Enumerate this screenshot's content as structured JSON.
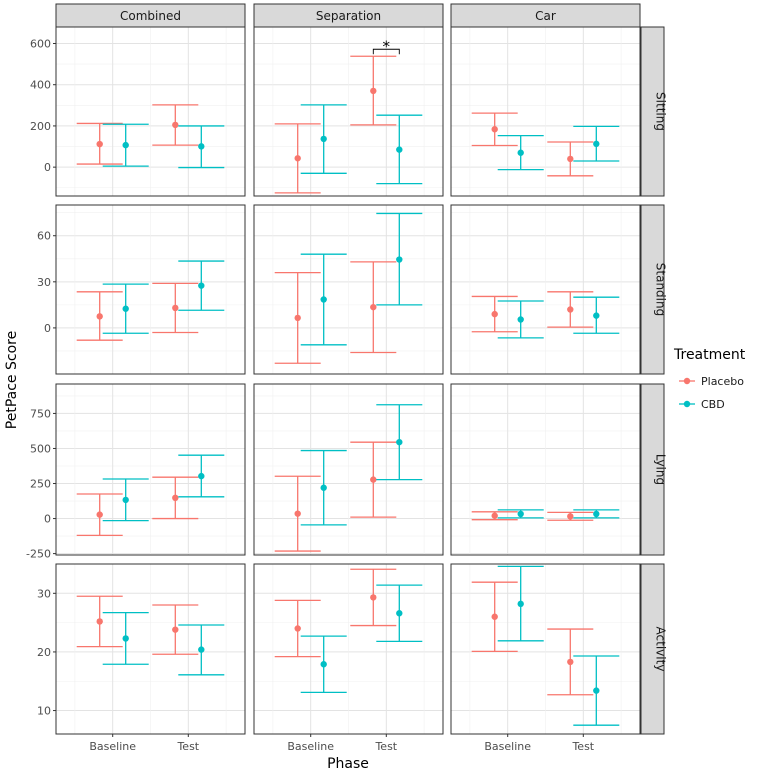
{
  "chart_data": {
    "type": "errorbar",
    "title": "",
    "xlabel": "Phase",
    "ylabel": "PetPace Score",
    "phases": [
      "Baseline",
      "Test"
    ],
    "columns": [
      "Combined",
      "Separation",
      "Car"
    ],
    "rows": [
      "Sitting",
      "Standing",
      "Lying",
      "Activity"
    ],
    "legend": {
      "title": "Treatment",
      "position": "right",
      "entries": [
        {
          "name": "Placebo",
          "color": "#F8766D"
        },
        {
          "name": "CBD",
          "color": "#00BFC4"
        }
      ]
    },
    "y_axes": [
      {
        "row": "Sitting",
        "ylim": [
          -140,
          680
        ],
        "ticks": [
          0,
          200,
          400,
          600
        ],
        "tick_labels": [
          "0",
          "200",
          "400",
          "600"
        ]
      },
      {
        "row": "Standing",
        "ylim": [
          -30,
          80
        ],
        "ticks": [
          0,
          30,
          60
        ],
        "tick_labels": [
          "0",
          "30",
          "60"
        ]
      },
      {
        "row": "Lying",
        "ylim": [
          -260,
          960
        ],
        "ticks": [
          -250,
          0,
          250,
          500,
          750
        ],
        "tick_labels": [
          "-250",
          "0",
          "250",
          "500",
          "750"
        ]
      },
      {
        "row": "Activity",
        "ylim": [
          6,
          35
        ],
        "ticks": [
          10,
          20,
          30
        ],
        "tick_labels": [
          "10",
          "20",
          "30"
        ]
      }
    ],
    "series": [
      {
        "row": "Sitting",
        "column": "Combined",
        "treatment": "Placebo",
        "phase": "Baseline",
        "mean": 112,
        "lower": 15,
        "upper": 212
      },
      {
        "row": "Sitting",
        "column": "Combined",
        "treatment": "CBD",
        "phase": "Baseline",
        "mean": 107,
        "lower": 5,
        "upper": 208
      },
      {
        "row": "Sitting",
        "column": "Combined",
        "treatment": "Placebo",
        "phase": "Test",
        "mean": 205,
        "lower": 107,
        "upper": 302
      },
      {
        "row": "Sitting",
        "column": "Combined",
        "treatment": "CBD",
        "phase": "Test",
        "mean": 101,
        "lower": -2,
        "upper": 200
      },
      {
        "row": "Sitting",
        "column": "Separation",
        "treatment": "Placebo",
        "phase": "Baseline",
        "mean": 43,
        "lower": -125,
        "upper": 210
      },
      {
        "row": "Sitting",
        "column": "Separation",
        "treatment": "CBD",
        "phase": "Baseline",
        "mean": 137,
        "lower": -30,
        "upper": 302
      },
      {
        "row": "Sitting",
        "column": "Separation",
        "treatment": "Placebo",
        "phase": "Test",
        "mean": 370,
        "lower": 205,
        "upper": 538
      },
      {
        "row": "Sitting",
        "column": "Separation",
        "treatment": "CBD",
        "phase": "Test",
        "mean": 85,
        "lower": -80,
        "upper": 252
      },
      {
        "row": "Sitting",
        "column": "Car",
        "treatment": "Placebo",
        "phase": "Baseline",
        "mean": 184,
        "lower": 105,
        "upper": 262
      },
      {
        "row": "Sitting",
        "column": "Car",
        "treatment": "CBD",
        "phase": "Baseline",
        "mean": 70,
        "lower": -12,
        "upper": 153
      },
      {
        "row": "Sitting",
        "column": "Car",
        "treatment": "Placebo",
        "phase": "Test",
        "mean": 40,
        "lower": -42,
        "upper": 122
      },
      {
        "row": "Sitting",
        "column": "Car",
        "treatment": "CBD",
        "phase": "Test",
        "mean": 113,
        "lower": 30,
        "upper": 198
      },
      {
        "row": "Standing",
        "column": "Combined",
        "treatment": "Placebo",
        "phase": "Baseline",
        "mean": 7.5,
        "lower": -8,
        "upper": 23.5
      },
      {
        "row": "Standing",
        "column": "Combined",
        "treatment": "CBD",
        "phase": "Baseline",
        "mean": 12.5,
        "lower": -3.5,
        "upper": 28.5
      },
      {
        "row": "Standing",
        "column": "Combined",
        "treatment": "Placebo",
        "phase": "Test",
        "mean": 13,
        "lower": -3,
        "upper": 29
      },
      {
        "row": "Standing",
        "column": "Combined",
        "treatment": "CBD",
        "phase": "Test",
        "mean": 27.5,
        "lower": 11.5,
        "upper": 43.5
      },
      {
        "row": "Standing",
        "column": "Separation",
        "treatment": "Placebo",
        "phase": "Baseline",
        "mean": 6.5,
        "lower": -23,
        "upper": 36
      },
      {
        "row": "Standing",
        "column": "Separation",
        "treatment": "CBD",
        "phase": "Baseline",
        "mean": 18.5,
        "lower": -11,
        "upper": 48
      },
      {
        "row": "Standing",
        "column": "Separation",
        "treatment": "Placebo",
        "phase": "Test",
        "mean": 13.5,
        "lower": -16,
        "upper": 43
      },
      {
        "row": "Standing",
        "column": "Separation",
        "treatment": "CBD",
        "phase": "Test",
        "mean": 44.5,
        "lower": 15,
        "upper": 74.5
      },
      {
        "row": "Standing",
        "column": "Car",
        "treatment": "Placebo",
        "phase": "Baseline",
        "mean": 9,
        "lower": -2.5,
        "upper": 20.5
      },
      {
        "row": "Standing",
        "column": "Car",
        "treatment": "CBD",
        "phase": "Baseline",
        "mean": 5.5,
        "lower": -6.5,
        "upper": 17.5
      },
      {
        "row": "Standing",
        "column": "Car",
        "treatment": "Placebo",
        "phase": "Test",
        "mean": 12,
        "lower": 0.5,
        "upper": 23.5
      },
      {
        "row": "Standing",
        "column": "Car",
        "treatment": "CBD",
        "phase": "Test",
        "mean": 8,
        "lower": -3.5,
        "upper": 20
      },
      {
        "row": "Lying",
        "column": "Combined",
        "treatment": "Placebo",
        "phase": "Baseline",
        "mean": 28,
        "lower": -120,
        "upper": 175
      },
      {
        "row": "Lying",
        "column": "Combined",
        "treatment": "CBD",
        "phase": "Baseline",
        "mean": 133,
        "lower": -15,
        "upper": 282
      },
      {
        "row": "Lying",
        "column": "Combined",
        "treatment": "Placebo",
        "phase": "Test",
        "mean": 148,
        "lower": 0,
        "upper": 295
      },
      {
        "row": "Lying",
        "column": "Combined",
        "treatment": "CBD",
        "phase": "Test",
        "mean": 303,
        "lower": 155,
        "upper": 452
      },
      {
        "row": "Lying",
        "column": "Separation",
        "treatment": "Placebo",
        "phase": "Baseline",
        "mean": 35,
        "lower": -232,
        "upper": 302
      },
      {
        "row": "Lying",
        "column": "Separation",
        "treatment": "CBD",
        "phase": "Baseline",
        "mean": 220,
        "lower": -45,
        "upper": 485
      },
      {
        "row": "Lying",
        "column": "Separation",
        "treatment": "Placebo",
        "phase": "Test",
        "mean": 278,
        "lower": 10,
        "upper": 545
      },
      {
        "row": "Lying",
        "column": "Separation",
        "treatment": "CBD",
        "phase": "Test",
        "mean": 545,
        "lower": 278,
        "upper": 812
      },
      {
        "row": "Lying",
        "column": "Car",
        "treatment": "Placebo",
        "phase": "Baseline",
        "mean": 20,
        "lower": -8,
        "upper": 48
      },
      {
        "row": "Lying",
        "column": "Car",
        "treatment": "CBD",
        "phase": "Baseline",
        "mean": 33,
        "lower": 5,
        "upper": 62
      },
      {
        "row": "Lying",
        "column": "Car",
        "treatment": "Placebo",
        "phase": "Test",
        "mean": 16,
        "lower": -12,
        "upper": 44
      },
      {
        "row": "Lying",
        "column": "Car",
        "treatment": "CBD",
        "phase": "Test",
        "mean": 33,
        "lower": 5,
        "upper": 62
      },
      {
        "row": "Activity",
        "column": "Combined",
        "treatment": "Placebo",
        "phase": "Baseline",
        "mean": 25.2,
        "lower": 20.9,
        "upper": 29.5
      },
      {
        "row": "Activity",
        "column": "Combined",
        "treatment": "CBD",
        "phase": "Baseline",
        "mean": 22.3,
        "lower": 17.9,
        "upper": 26.7
      },
      {
        "row": "Activity",
        "column": "Combined",
        "treatment": "Placebo",
        "phase": "Test",
        "mean": 23.8,
        "lower": 19.6,
        "upper": 28
      },
      {
        "row": "Activity",
        "column": "Combined",
        "treatment": "CBD",
        "phase": "Test",
        "mean": 20.4,
        "lower": 16.1,
        "upper": 24.6
      },
      {
        "row": "Activity",
        "column": "Separation",
        "treatment": "Placebo",
        "phase": "Baseline",
        "mean": 24,
        "lower": 19.2,
        "upper": 28.8
      },
      {
        "row": "Activity",
        "column": "Separation",
        "treatment": "CBD",
        "phase": "Baseline",
        "mean": 17.9,
        "lower": 13.1,
        "upper": 22.7
      },
      {
        "row": "Activity",
        "column": "Separation",
        "treatment": "Placebo",
        "phase": "Test",
        "mean": 29.3,
        "lower": 24.5,
        "upper": 34.1
      },
      {
        "row": "Activity",
        "column": "Separation",
        "treatment": "CBD",
        "phase": "Test",
        "mean": 26.6,
        "lower": 21.8,
        "upper": 31.4
      },
      {
        "row": "Activity",
        "column": "Car",
        "treatment": "Placebo",
        "phase": "Baseline",
        "mean": 26,
        "lower": 20.1,
        "upper": 31.9
      },
      {
        "row": "Activity",
        "column": "Car",
        "treatment": "CBD",
        "phase": "Baseline",
        "mean": 28.2,
        "lower": 21.9,
        "upper": 34.6
      },
      {
        "row": "Activity",
        "column": "Car",
        "treatment": "Placebo",
        "phase": "Test",
        "mean": 18.3,
        "lower": 12.7,
        "upper": 23.9
      },
      {
        "row": "Activity",
        "column": "Car",
        "treatment": "CBD",
        "phase": "Test",
        "mean": 13.4,
        "lower": 7.5,
        "upper": 19.3
      }
    ],
    "annotations": [
      {
        "row": "Sitting",
        "column": "Separation",
        "text": "*",
        "from_phase": "Test",
        "compare": "Placebo vs CBD",
        "bracket_value": 572,
        "label_value": 600
      }
    ]
  }
}
